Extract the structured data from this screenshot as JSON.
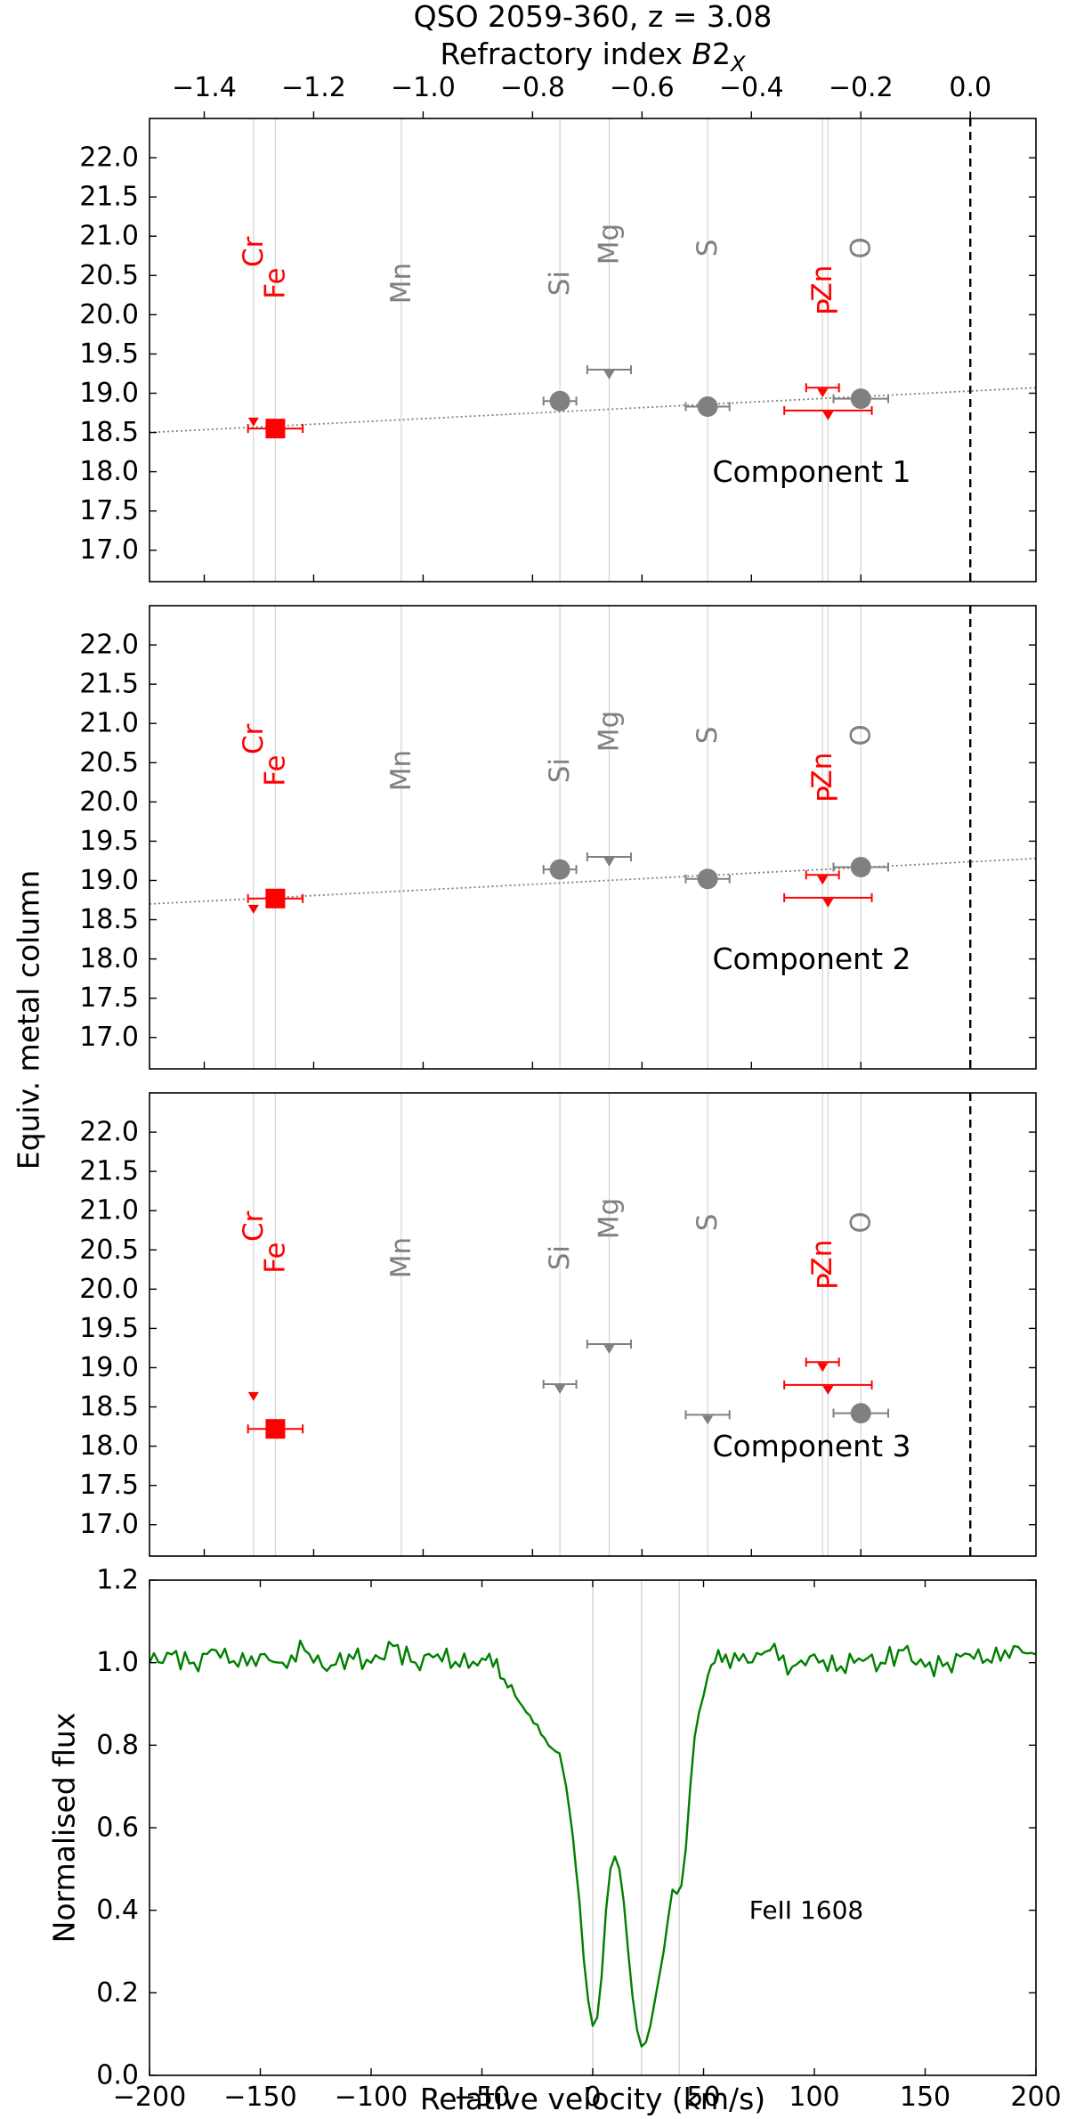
{
  "title": "QSO 2059-360, z = 3.08",
  "shared_ylabel": "Equiv. metal column",
  "colors": {
    "observed": "#ff0000",
    "reference": "#808080",
    "axis": "#000000",
    "guide": "#d3d3d3",
    "fit": "#808080",
    "spectrum": "#007f00"
  },
  "chart_data": [
    {
      "type": "scatter",
      "panel": "Component 1",
      "title": "QSO 2059-360, z = 3.08",
      "xlabel": "Refractory index B2X",
      "xlim": [
        -1.5,
        0.12
      ],
      "ylim": [
        16.6,
        22.5
      ],
      "x_ticks": [
        -1.4,
        -1.2,
        -1.0,
        -0.8,
        -0.6,
        -0.4,
        -0.2,
        0.0
      ],
      "x_tick_labels": [
        "−1.4",
        "−1.2",
        "−1.0",
        "−0.8",
        "−0.6",
        "−0.4",
        "−0.2",
        "0.0"
      ],
      "y_ticks": [
        17.0,
        17.5,
        18.0,
        18.5,
        19.0,
        19.5,
        20.0,
        20.5,
        21.0,
        21.5,
        22.0
      ],
      "y_tick_labels": [
        "17.0",
        "17.5",
        "18.0",
        "18.5",
        "19.0",
        "19.5",
        "20.0",
        "20.5",
        "21.0",
        "21.5",
        "22.0"
      ],
      "label": "Component 1",
      "vertical_dashed_at": 0.0,
      "elements": [
        {
          "name": "Cr",
          "x": -1.31,
          "color": "red",
          "label_y": 20.8
        },
        {
          "name": "Fe",
          "x": -1.27,
          "color": "red",
          "label_y": 20.4
        },
        {
          "name": "Mn",
          "x": -1.04,
          "color": "gray",
          "label_y": 20.4
        },
        {
          "name": "Si",
          "x": -0.75,
          "color": "gray",
          "label_y": 20.4
        },
        {
          "name": "Mg",
          "x": -0.66,
          "color": "gray",
          "label_y": 20.9
        },
        {
          "name": "S",
          "x": -0.48,
          "color": "gray",
          "label_y": 20.85
        },
        {
          "name": "Zn",
          "x": -0.27,
          "color": "red",
          "label_y": 20.4
        },
        {
          "name": "P",
          "x": -0.26,
          "color": "red",
          "label_y": 20.1
        },
        {
          "name": "O",
          "x": -0.2,
          "color": "gray",
          "label_y": 20.85
        }
      ],
      "fit_line": {
        "x0": -1.5,
        "y0": 18.5,
        "x1": 0.12,
        "y1": 19.07
      },
      "points": [
        {
          "element": "Cr",
          "x": -1.31,
          "y": 18.7,
          "xerr": 0.0,
          "kind": "upper",
          "color": "red"
        },
        {
          "element": "Fe",
          "x": -1.27,
          "y": 18.55,
          "xerr": 0.05,
          "kind": "detection",
          "color": "red"
        },
        {
          "element": "Si",
          "x": -0.75,
          "y": 18.9,
          "xerr": 0.03,
          "kind": "detection",
          "color": "gray"
        },
        {
          "element": "Mg",
          "x": -0.66,
          "y": 19.3,
          "xerr": 0.04,
          "kind": "upper",
          "color": "gray"
        },
        {
          "element": "S",
          "x": -0.48,
          "y": 18.83,
          "xerr": 0.04,
          "kind": "detection",
          "color": "gray"
        },
        {
          "element": "Zn",
          "x": -0.27,
          "y": 19.07,
          "xerr": 0.03,
          "kind": "upper",
          "color": "red"
        },
        {
          "element": "P",
          "x": -0.26,
          "y": 18.78,
          "xerr": 0.08,
          "kind": "upper",
          "color": "red"
        },
        {
          "element": "O",
          "x": -0.2,
          "y": 18.93,
          "xerr": 0.05,
          "kind": "detection",
          "color": "gray"
        }
      ]
    },
    {
      "type": "scatter",
      "panel": "Component 2",
      "xlim": [
        -1.5,
        0.12
      ],
      "ylim": [
        16.6,
        22.5
      ],
      "y_ticks": [
        17.0,
        17.5,
        18.0,
        18.5,
        19.0,
        19.5,
        20.0,
        20.5,
        21.0,
        21.5,
        22.0
      ],
      "y_tick_labels": [
        "17.0",
        "17.5",
        "18.0",
        "18.5",
        "19.0",
        "19.5",
        "20.0",
        "20.5",
        "21.0",
        "21.5",
        "22.0"
      ],
      "label": "Component 2",
      "vertical_dashed_at": 0.0,
      "elements": [
        {
          "name": "Cr",
          "x": -1.31,
          "color": "red",
          "label_y": 20.8
        },
        {
          "name": "Fe",
          "x": -1.27,
          "color": "red",
          "label_y": 20.4
        },
        {
          "name": "Mn",
          "x": -1.04,
          "color": "gray",
          "label_y": 20.4
        },
        {
          "name": "Si",
          "x": -0.75,
          "color": "gray",
          "label_y": 20.4
        },
        {
          "name": "Mg",
          "x": -0.66,
          "color": "gray",
          "label_y": 20.9
        },
        {
          "name": "S",
          "x": -0.48,
          "color": "gray",
          "label_y": 20.85
        },
        {
          "name": "Zn",
          "x": -0.27,
          "color": "red",
          "label_y": 20.4
        },
        {
          "name": "P",
          "x": -0.26,
          "color": "red",
          "label_y": 20.1
        },
        {
          "name": "O",
          "x": -0.2,
          "color": "gray",
          "label_y": 20.85
        }
      ],
      "fit_line": {
        "x0": -1.5,
        "y0": 18.7,
        "x1": 0.12,
        "y1": 19.28
      },
      "points": [
        {
          "element": "Cr",
          "x": -1.31,
          "y": 18.7,
          "xerr": 0.0,
          "kind": "upper",
          "color": "red"
        },
        {
          "element": "Fe",
          "x": -1.27,
          "y": 18.77,
          "xerr": 0.05,
          "kind": "detection",
          "color": "red"
        },
        {
          "element": "Si",
          "x": -0.75,
          "y": 19.14,
          "xerr": 0.03,
          "kind": "detection",
          "color": "gray"
        },
        {
          "element": "Mg",
          "x": -0.66,
          "y": 19.3,
          "xerr": 0.04,
          "kind": "upper",
          "color": "gray"
        },
        {
          "element": "S",
          "x": -0.48,
          "y": 19.02,
          "xerr": 0.04,
          "kind": "detection",
          "color": "gray"
        },
        {
          "element": "Zn",
          "x": -0.27,
          "y": 19.07,
          "xerr": 0.03,
          "kind": "upper",
          "color": "red"
        },
        {
          "element": "P",
          "x": -0.26,
          "y": 18.78,
          "xerr": 0.08,
          "kind": "upper",
          "color": "red"
        },
        {
          "element": "O",
          "x": -0.2,
          "y": 19.17,
          "xerr": 0.05,
          "kind": "detection",
          "color": "gray"
        }
      ]
    },
    {
      "type": "scatter",
      "panel": "Component 3",
      "xlim": [
        -1.5,
        0.12
      ],
      "ylim": [
        16.6,
        22.5
      ],
      "y_ticks": [
        17.0,
        17.5,
        18.0,
        18.5,
        19.0,
        19.5,
        20.0,
        20.5,
        21.0,
        21.5,
        22.0
      ],
      "y_tick_labels": [
        "17.0",
        "17.5",
        "18.0",
        "18.5",
        "19.0",
        "19.5",
        "20.0",
        "20.5",
        "21.0",
        "21.5",
        "22.0"
      ],
      "label": "Component 3",
      "vertical_dashed_at": 0.0,
      "elements": [
        {
          "name": "Cr",
          "x": -1.31,
          "color": "red",
          "label_y": 20.8
        },
        {
          "name": "Fe",
          "x": -1.27,
          "color": "red",
          "label_y": 20.4
        },
        {
          "name": "Mn",
          "x": -1.04,
          "color": "gray",
          "label_y": 20.4
        },
        {
          "name": "Si",
          "x": -0.75,
          "color": "gray",
          "label_y": 20.4
        },
        {
          "name": "Mg",
          "x": -0.66,
          "color": "gray",
          "label_y": 20.9
        },
        {
          "name": "S",
          "x": -0.48,
          "color": "gray",
          "label_y": 20.85
        },
        {
          "name": "Zn",
          "x": -0.27,
          "color": "red",
          "label_y": 20.4
        },
        {
          "name": "P",
          "x": -0.26,
          "color": "red",
          "label_y": 20.1
        },
        {
          "name": "O",
          "x": -0.2,
          "color": "gray",
          "label_y": 20.85
        }
      ],
      "points": [
        {
          "element": "Cr",
          "x": -1.31,
          "y": 18.7,
          "xerr": 0.0,
          "kind": "upper",
          "color": "red"
        },
        {
          "element": "Fe",
          "x": -1.27,
          "y": 18.22,
          "xerr": 0.05,
          "kind": "detection",
          "color": "red"
        },
        {
          "element": "Si",
          "x": -0.75,
          "y": 18.79,
          "xerr": 0.03,
          "kind": "upper",
          "color": "gray"
        },
        {
          "element": "Mg",
          "x": -0.66,
          "y": 19.3,
          "xerr": 0.04,
          "kind": "upper",
          "color": "gray"
        },
        {
          "element": "S",
          "x": -0.48,
          "y": 18.4,
          "xerr": 0.04,
          "kind": "upper",
          "color": "gray"
        },
        {
          "element": "Zn",
          "x": -0.27,
          "y": 19.07,
          "xerr": 0.03,
          "kind": "upper",
          "color": "red"
        },
        {
          "element": "P",
          "x": -0.26,
          "y": 18.78,
          "xerr": 0.08,
          "kind": "upper",
          "color": "red"
        },
        {
          "element": "O",
          "x": -0.2,
          "y": 18.42,
          "xerr": 0.05,
          "kind": "detection",
          "color": "gray"
        }
      ]
    },
    {
      "type": "line",
      "panel": "spectrum",
      "xlabel": "Relative velocity (km/s)",
      "ylabel": "Normalised flux",
      "xlim": [
        -200,
        200
      ],
      "ylim": [
        0.0,
        1.2
      ],
      "x_ticks": [
        -200,
        -150,
        -100,
        -50,
        0,
        50,
        100,
        150,
        200
      ],
      "x_tick_labels": [
        "−200",
        "−150",
        "−100",
        "−50",
        "0",
        "50",
        "100",
        "150",
        "200"
      ],
      "y_ticks": [
        0.0,
        0.2,
        0.4,
        0.6,
        0.8,
        1.0,
        1.2
      ],
      "y_tick_labels": [
        "0.0",
        "0.2",
        "0.4",
        "0.6",
        "0.8",
        "1.0",
        "1.2"
      ],
      "label": "FeII 1608",
      "component_velocities": [
        0,
        22,
        39
      ],
      "series": [
        {
          "x": [
            -200,
            -190,
            -180,
            -170,
            -160,
            -150,
            -140,
            -130,
            -120,
            -110,
            -100,
            -90,
            -80,
            -70,
            -60,
            -50,
            -45,
            -40,
            -35,
            -30,
            -25,
            -20,
            -15,
            -12,
            -9,
            -6,
            -4,
            -2,
            0,
            2,
            4,
            6,
            8,
            10,
            12,
            14,
            16,
            18,
            20,
            22,
            24,
            26,
            28,
            30,
            32,
            34,
            36,
            38,
            40,
            42,
            44,
            46,
            48,
            50,
            52,
            55,
            60,
            70,
            80,
            90,
            100,
            110,
            120,
            130,
            140,
            150,
            160,
            170,
            180,
            190,
            200
          ],
          "y": [
            1.0,
            1.02,
            1.0,
            1.03,
            0.99,
            1.02,
            1.0,
            1.03,
            0.98,
            1.02,
            1.0,
            1.04,
            1.0,
            1.02,
            0.99,
            1.01,
            0.99,
            0.96,
            0.92,
            0.88,
            0.85,
            0.8,
            0.78,
            0.7,
            0.58,
            0.42,
            0.28,
            0.18,
            0.12,
            0.14,
            0.24,
            0.4,
            0.5,
            0.53,
            0.5,
            0.42,
            0.3,
            0.19,
            0.11,
            0.07,
            0.08,
            0.12,
            0.18,
            0.24,
            0.3,
            0.38,
            0.45,
            0.44,
            0.46,
            0.55,
            0.7,
            0.82,
            0.88,
            0.92,
            0.97,
            1.0,
            1.02,
            1.0,
            1.03,
            0.99,
            1.02,
            0.98,
            1.01,
            1.0,
            1.03,
            0.99,
            1.0,
            1.02,
            1.0,
            1.04,
            1.02
          ]
        }
      ]
    }
  ]
}
